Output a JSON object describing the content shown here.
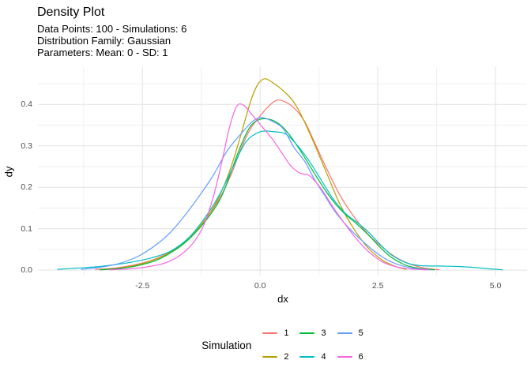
{
  "header": {
    "title": "Density Plot",
    "subtitle_lines": [
      "Data Points: 100 - Simulations: 6",
      "Distribution Family: Gaussian",
      "Parameters: Mean: 0 - SD: 1"
    ]
  },
  "chart_data": {
    "type": "line",
    "title": "Density Plot",
    "subtitle": "Data Points: 100 - Simulations: 6 / Distribution Family: Gaussian / Parameters: Mean: 0 - SD: 1",
    "xlabel": "dx",
    "ylabel": "dy",
    "legend_title": "Simulation",
    "legend_position": "bottom",
    "grid": true,
    "xlim": [
      -4.72,
      5.67
    ],
    "ylim": [
      -0.013,
      0.49
    ],
    "x_ticks": [
      -2.5,
      0.0,
      2.5,
      5.0
    ],
    "x_tick_labels": [
      "-2.5",
      "0.0",
      "2.5",
      "5.0"
    ],
    "x_minor": [
      -3.75,
      -1.25,
      1.25,
      3.75
    ],
    "y_ticks": [
      0.0,
      0.1,
      0.2,
      0.3,
      0.4
    ],
    "y_tick_labels": [
      "0.0",
      "0.1",
      "0.2",
      "0.3",
      "0.4"
    ],
    "y_minor": [
      0.05,
      0.15,
      0.25,
      0.35,
      0.45
    ],
    "grid_color_major": "#E2E2E2",
    "grid_color_minor": "#EFEFEF",
    "tick_label_color": "#4D4D4D",
    "text_color": "#000000",
    "series": [
      {
        "name": "1",
        "color": "#F8766D",
        "x": [
          -3.5,
          -3.1,
          -2.7,
          -2.3,
          -1.9,
          -1.6,
          -1.3,
          -1.0,
          -0.8,
          -0.6,
          -0.4,
          -0.2,
          0.0,
          0.15,
          0.35,
          0.55,
          0.75,
          0.95,
          1.15,
          1.4,
          1.7,
          2.0,
          2.3,
          2.6,
          2.9,
          3.2,
          3.5,
          3.8
        ],
        "y": [
          0.002,
          0.005,
          0.012,
          0.024,
          0.045,
          0.068,
          0.102,
          0.148,
          0.186,
          0.235,
          0.295,
          0.342,
          0.372,
          0.392,
          0.41,
          0.405,
          0.388,
          0.358,
          0.31,
          0.248,
          0.18,
          0.128,
          0.086,
          0.055,
          0.03,
          0.014,
          0.005,
          0.001
        ]
      },
      {
        "name": "2",
        "color": "#B79F00",
        "x": [
          -3.4,
          -3.0,
          -2.6,
          -2.2,
          -1.9,
          -1.6,
          -1.3,
          -1.0,
          -0.8,
          -0.6,
          -0.4,
          -0.2,
          -0.05,
          0.1,
          0.3,
          0.5,
          0.7,
          0.9,
          1.15,
          1.4,
          1.7,
          2.0,
          2.3,
          2.6,
          2.9,
          3.1
        ],
        "y": [
          0.001,
          0.005,
          0.013,
          0.027,
          0.044,
          0.068,
          0.103,
          0.15,
          0.195,
          0.255,
          0.33,
          0.408,
          0.448,
          0.462,
          0.45,
          0.432,
          0.408,
          0.368,
          0.305,
          0.238,
          0.158,
          0.098,
          0.053,
          0.024,
          0.008,
          0.002
        ]
      },
      {
        "name": "3",
        "color": "#00BA38",
        "x": [
          -3.4,
          -3.0,
          -2.6,
          -2.2,
          -1.9,
          -1.6,
          -1.3,
          -1.0,
          -0.8,
          -0.6,
          -0.4,
          -0.2,
          0.0,
          0.2,
          0.4,
          0.6,
          0.8,
          1.0,
          1.2,
          1.4,
          1.6,
          1.8,
          2.05,
          2.3,
          2.55,
          2.8,
          3.1,
          3.4,
          3.7
        ],
        "y": [
          0.001,
          0.004,
          0.011,
          0.024,
          0.042,
          0.066,
          0.1,
          0.143,
          0.183,
          0.243,
          0.303,
          0.348,
          0.364,
          0.364,
          0.353,
          0.33,
          0.298,
          0.262,
          0.225,
          0.19,
          0.16,
          0.136,
          0.112,
          0.085,
          0.055,
          0.03,
          0.012,
          0.004,
          0.001
        ]
      },
      {
        "name": "4",
        "color": "#00BFC4",
        "x": [
          -4.3,
          -3.9,
          -3.5,
          -3.1,
          -2.7,
          -2.3,
          -1.9,
          -1.5,
          -1.15,
          -0.85,
          -0.55,
          -0.3,
          0.0,
          0.3,
          0.55,
          0.8,
          1.05,
          1.3,
          1.55,
          1.8,
          2.05,
          2.3,
          2.55,
          2.8,
          3.1,
          3.4,
          3.8,
          4.2,
          4.6,
          4.9,
          5.15
        ],
        "y": [
          0.002,
          0.005,
          0.008,
          0.013,
          0.02,
          0.03,
          0.046,
          0.08,
          0.13,
          0.185,
          0.255,
          0.31,
          0.334,
          0.334,
          0.328,
          0.3,
          0.262,
          0.217,
          0.172,
          0.138,
          0.116,
          0.092,
          0.062,
          0.036,
          0.018,
          0.011,
          0.01,
          0.009,
          0.006,
          0.003,
          0.001
        ]
      },
      {
        "name": "5",
        "color": "#619CFF",
        "x": [
          -3.8,
          -3.4,
          -3.0,
          -2.6,
          -2.2,
          -1.9,
          -1.6,
          -1.3,
          -1.0,
          -0.7,
          -0.4,
          -0.15,
          0.05,
          0.3,
          0.5,
          0.72,
          0.95,
          1.15,
          1.4,
          1.6,
          1.85,
          2.1,
          2.4,
          2.7,
          3.0,
          3.3,
          3.6
        ],
        "y": [
          0.002,
          0.007,
          0.016,
          0.033,
          0.062,
          0.092,
          0.132,
          0.178,
          0.228,
          0.288,
          0.33,
          0.36,
          0.368,
          0.357,
          0.34,
          0.296,
          0.262,
          0.22,
          0.175,
          0.14,
          0.106,
          0.078,
          0.048,
          0.025,
          0.011,
          0.004,
          0.001
        ]
      },
      {
        "name": "6",
        "color": "#F564E3",
        "x": [
          -3.2,
          -2.8,
          -2.4,
          -2.0,
          -1.7,
          -1.45,
          -1.25,
          -1.1,
          -0.95,
          -0.8,
          -0.65,
          -0.5,
          -0.35,
          -0.15,
          0.05,
          0.25,
          0.45,
          0.65,
          0.85,
          1.05,
          1.3,
          1.55,
          1.8,
          2.05,
          2.3,
          2.6,
          2.9,
          3.2,
          3.55
        ],
        "y": [
          0.001,
          0.003,
          0.008,
          0.018,
          0.036,
          0.062,
          0.096,
          0.138,
          0.196,
          0.268,
          0.345,
          0.395,
          0.398,
          0.372,
          0.345,
          0.318,
          0.285,
          0.252,
          0.234,
          0.228,
          0.196,
          0.152,
          0.112,
          0.075,
          0.045,
          0.02,
          0.008,
          0.003,
          0.001
        ]
      }
    ]
  }
}
